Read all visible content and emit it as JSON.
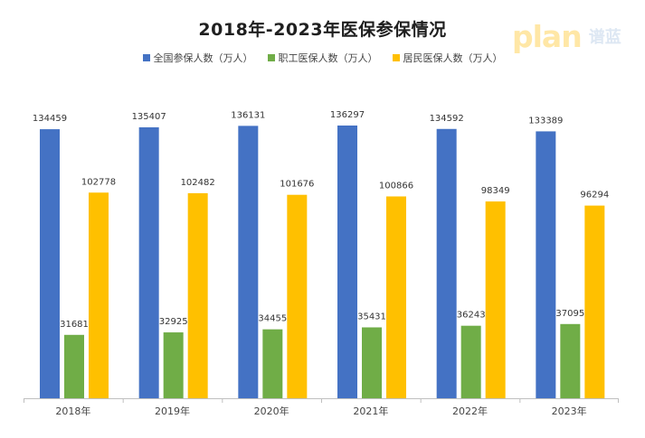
{
  "watermark": {
    "latin": "plan",
    "cjk": "谱蓝"
  },
  "colors": {
    "total": "#4472C4",
    "employee": "#70AD47",
    "resident": "#FFC000",
    "axis": "#bfbfbf"
  },
  "chart_data": {
    "type": "bar",
    "title": "2018年-2023年医保参保情况",
    "categories": [
      "2018年",
      "2019年",
      "2020年",
      "2021年",
      "2022年",
      "2023年"
    ],
    "ylim": [
      0,
      140000
    ],
    "grid": false,
    "legend_position": "top",
    "series": [
      {
        "name": "全国参保人数（万人）",
        "values": [
          134459,
          135407,
          136131,
          136297,
          134592,
          133389
        ]
      },
      {
        "name": "职工医保人数（万人）",
        "values": [
          31681,
          32925,
          34455,
          35431,
          36243,
          37095
        ]
      },
      {
        "name": "居民医保人数（万人）",
        "values": [
          102778,
          102482,
          101676,
          100866,
          98349,
          96294
        ]
      }
    ]
  }
}
